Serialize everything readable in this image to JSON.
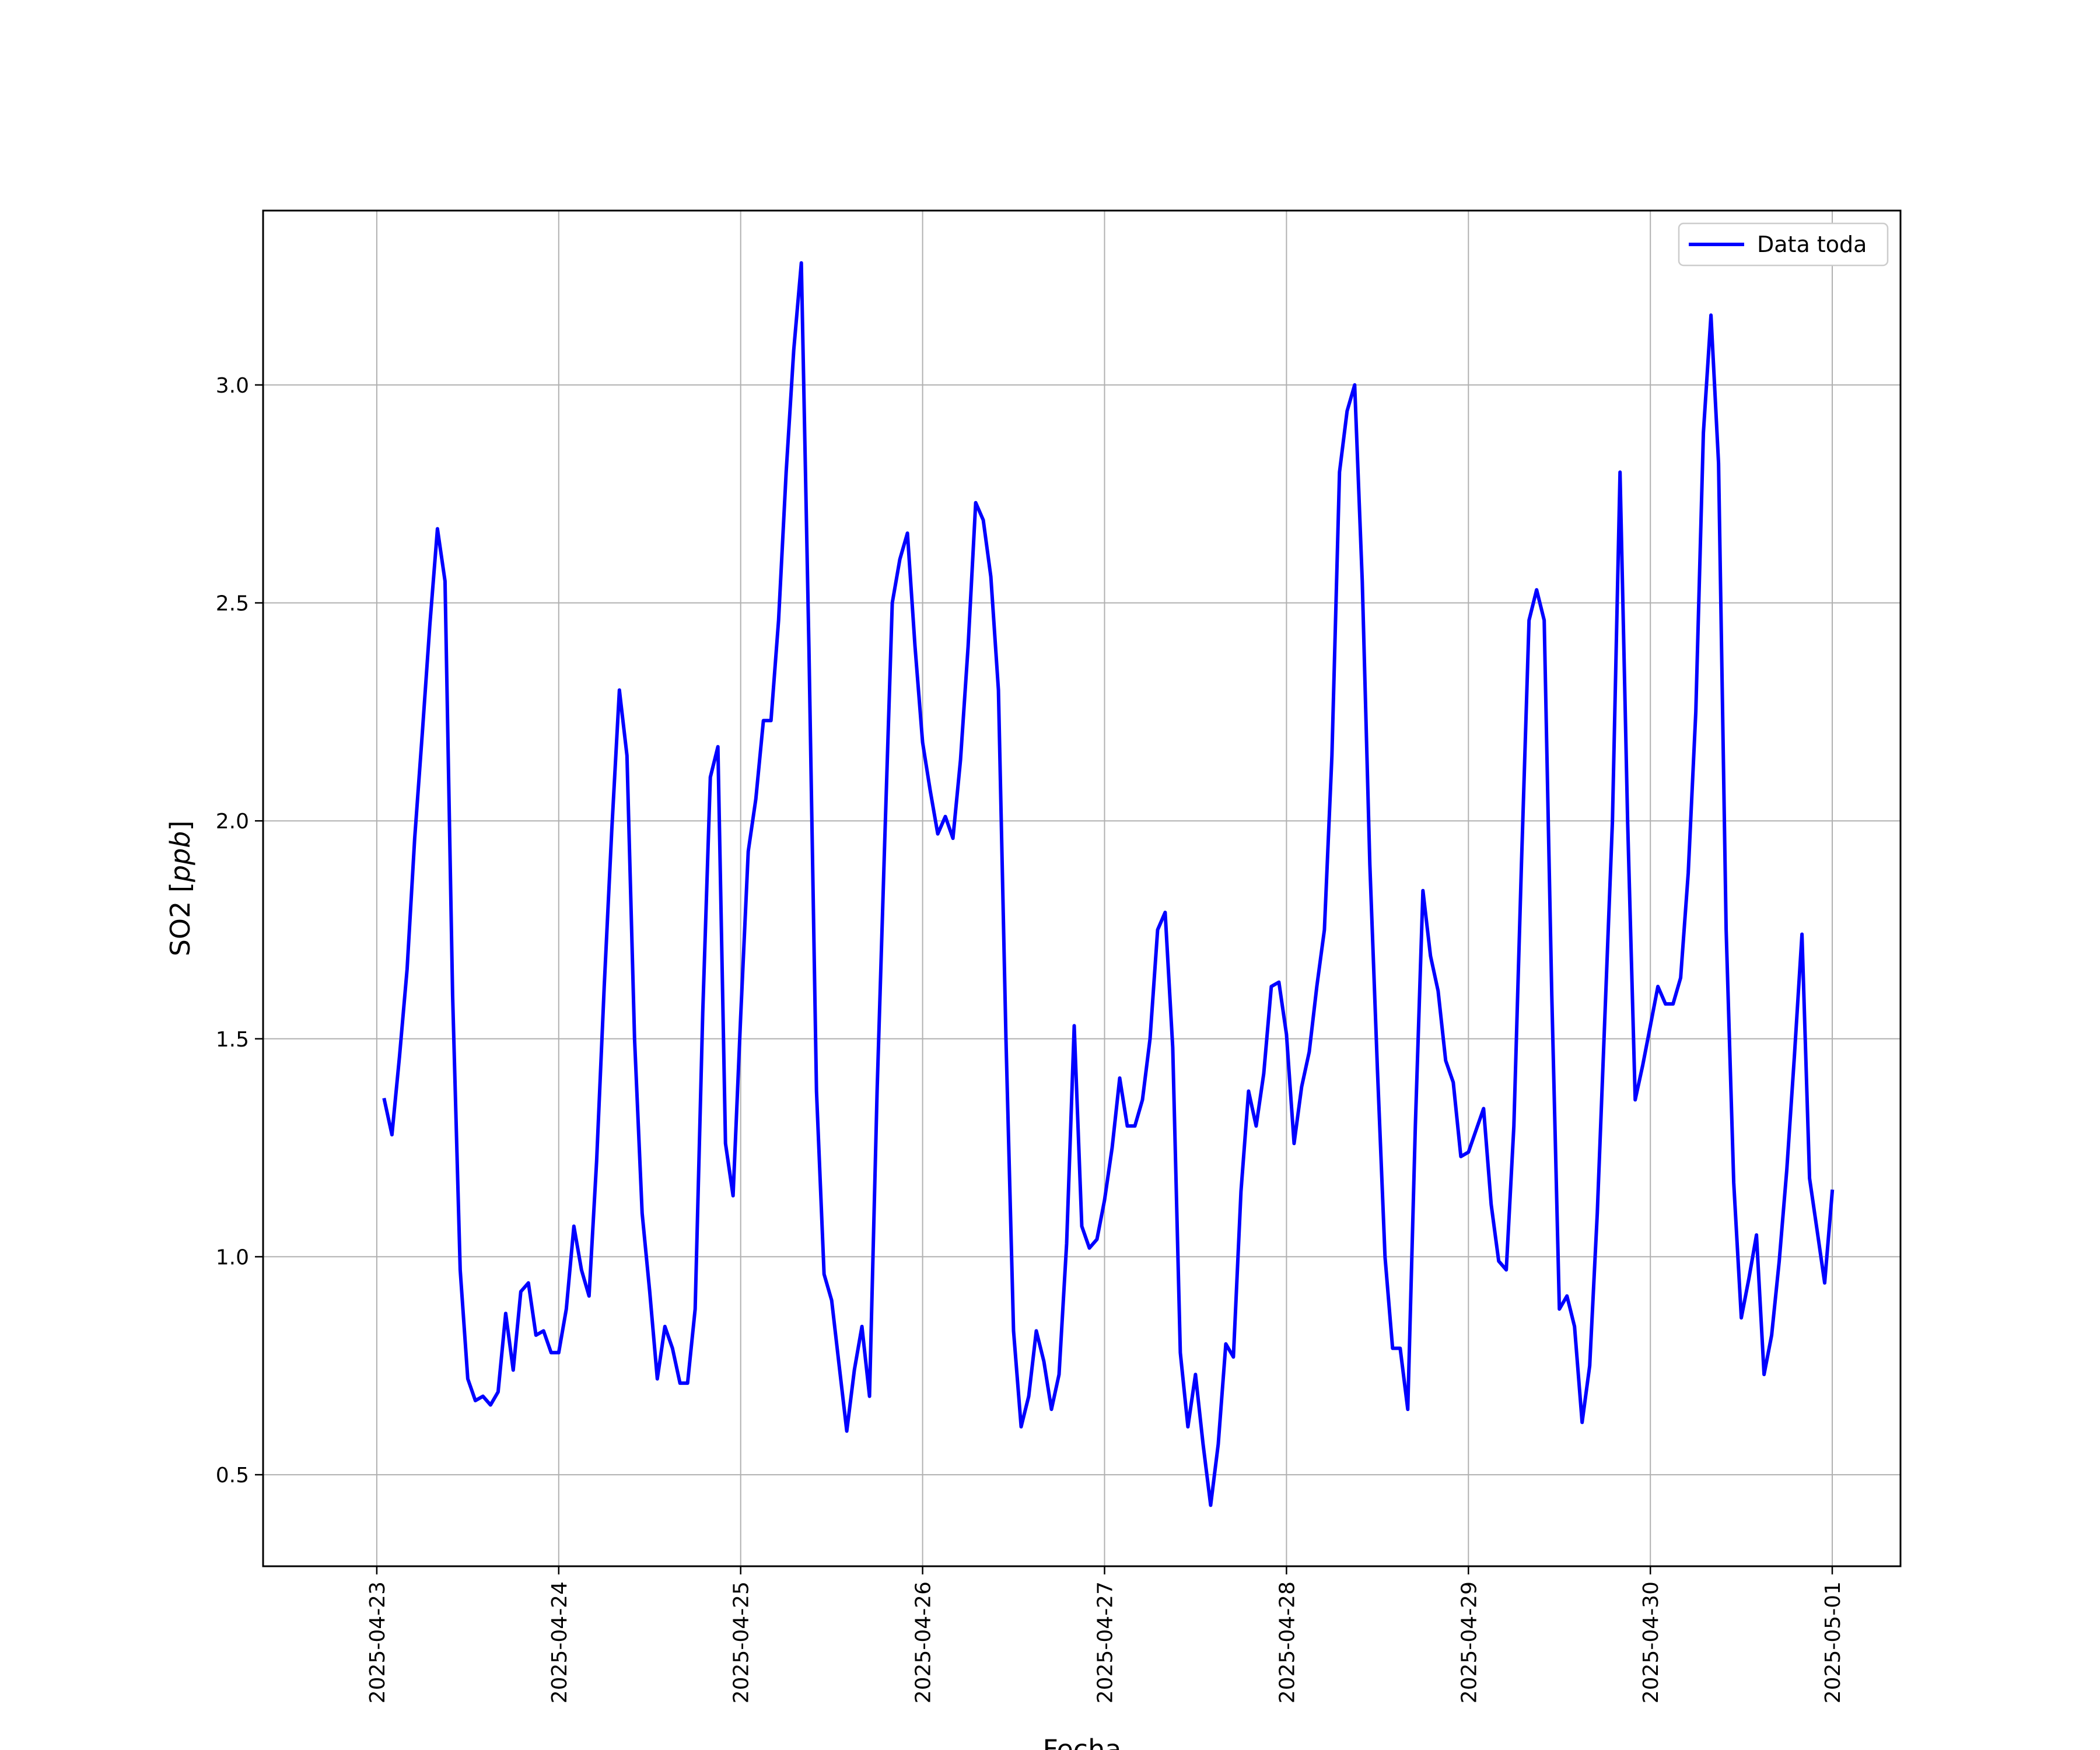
{
  "chart_data": {
    "type": "line",
    "xlabel": "Fecha",
    "ylabel": "SO2 ",
    "ylabel_unit": "ppb",
    "xlim": [
      "2025-04-22T09:00",
      "2025-05-01T09:00"
    ],
    "ylim": [
      0.29,
      3.4
    ],
    "x_ticks": [
      "2025-04-23",
      "2025-04-24",
      "2025-04-25",
      "2025-04-26",
      "2025-04-27",
      "2025-04-28",
      "2025-04-29",
      "2025-04-30",
      "2025-05-01"
    ],
    "y_ticks": [
      0.5,
      1.0,
      1.5,
      2.0,
      2.5,
      3.0
    ],
    "y_tick_labels": [
      "0.5",
      "1.0",
      "1.5",
      "2.0",
      "2.5",
      "3.0"
    ],
    "grid": true,
    "legend_position": "top-right",
    "series": [
      {
        "name": "Data toda",
        "color": "#0000ff",
        "x": [
          "2025-04-23T01:00",
          "2025-04-23T02:00",
          "2025-04-23T03:00",
          "2025-04-23T04:00",
          "2025-04-23T05:00",
          "2025-04-23T06:00",
          "2025-04-23T07:00",
          "2025-04-23T08:00",
          "2025-04-23T09:00",
          "2025-04-23T10:00",
          "2025-04-23T11:00",
          "2025-04-23T12:00",
          "2025-04-23T13:00",
          "2025-04-23T14:00",
          "2025-04-23T15:00",
          "2025-04-23T16:00",
          "2025-04-23T17:00",
          "2025-04-23T18:00",
          "2025-04-23T19:00",
          "2025-04-23T20:00",
          "2025-04-23T21:00",
          "2025-04-23T22:00",
          "2025-04-23T23:00",
          "2025-04-24T00:00",
          "2025-04-24T01:00",
          "2025-04-24T02:00",
          "2025-04-24T03:00",
          "2025-04-24T04:00",
          "2025-04-24T05:00",
          "2025-04-24T06:00",
          "2025-04-24T07:00",
          "2025-04-24T08:00",
          "2025-04-24T09:00",
          "2025-04-24T10:00",
          "2025-04-24T11:00",
          "2025-04-24T12:00",
          "2025-04-24T13:00",
          "2025-04-24T14:00",
          "2025-04-24T15:00",
          "2025-04-24T16:00",
          "2025-04-24T17:00",
          "2025-04-24T18:00",
          "2025-04-24T19:00",
          "2025-04-24T20:00",
          "2025-04-24T21:00",
          "2025-04-24T22:00",
          "2025-04-24T23:00",
          "2025-04-25T00:00",
          "2025-04-25T01:00",
          "2025-04-25T02:00",
          "2025-04-25T03:00",
          "2025-04-25T04:00",
          "2025-04-25T05:00",
          "2025-04-25T06:00",
          "2025-04-25T07:00",
          "2025-04-25T08:00",
          "2025-04-25T09:00",
          "2025-04-25T10:00",
          "2025-04-25T11:00",
          "2025-04-25T12:00",
          "2025-04-25T13:00",
          "2025-04-25T14:00",
          "2025-04-25T15:00",
          "2025-04-25T16:00",
          "2025-04-25T17:00",
          "2025-04-25T18:00",
          "2025-04-25T19:00",
          "2025-04-25T20:00",
          "2025-04-25T21:00",
          "2025-04-25T22:00",
          "2025-04-25T23:00",
          "2025-04-26T00:00",
          "2025-04-26T01:00",
          "2025-04-26T02:00",
          "2025-04-26T03:00",
          "2025-04-26T04:00",
          "2025-04-26T05:00",
          "2025-04-26T06:00",
          "2025-04-26T07:00",
          "2025-04-26T08:00",
          "2025-04-26T09:00",
          "2025-04-26T10:00",
          "2025-04-26T11:00",
          "2025-04-26T12:00",
          "2025-04-26T13:00",
          "2025-04-26T14:00",
          "2025-04-26T15:00",
          "2025-04-26T16:00",
          "2025-04-26T17:00",
          "2025-04-26T18:00",
          "2025-04-26T19:00",
          "2025-04-26T20:00",
          "2025-04-26T21:00",
          "2025-04-26T22:00",
          "2025-04-26T23:00",
          "2025-04-27T00:00",
          "2025-04-27T01:00",
          "2025-04-27T02:00",
          "2025-04-27T03:00",
          "2025-04-27T04:00",
          "2025-04-27T05:00",
          "2025-04-27T06:00",
          "2025-04-27T07:00",
          "2025-04-27T08:00",
          "2025-04-27T09:00",
          "2025-04-27T10:00",
          "2025-04-27T11:00",
          "2025-04-27T12:00",
          "2025-04-27T13:00",
          "2025-04-27T14:00",
          "2025-04-27T15:00",
          "2025-04-27T16:00",
          "2025-04-27T17:00",
          "2025-04-27T18:00",
          "2025-04-27T19:00",
          "2025-04-27T20:00",
          "2025-04-27T21:00",
          "2025-04-27T22:00",
          "2025-04-27T23:00",
          "2025-04-28T00:00",
          "2025-04-28T01:00",
          "2025-04-28T02:00",
          "2025-04-28T03:00",
          "2025-04-28T04:00",
          "2025-04-28T05:00",
          "2025-04-28T06:00",
          "2025-04-28T07:00",
          "2025-04-28T08:00",
          "2025-04-28T09:00",
          "2025-04-28T10:00",
          "2025-04-28T11:00",
          "2025-04-28T12:00",
          "2025-04-28T13:00",
          "2025-04-28T14:00",
          "2025-04-28T15:00",
          "2025-04-28T16:00",
          "2025-04-28T17:00",
          "2025-04-28T18:00",
          "2025-04-28T19:00",
          "2025-04-28T20:00",
          "2025-04-28T21:00",
          "2025-04-28T22:00",
          "2025-04-28T23:00",
          "2025-04-29T00:00",
          "2025-04-29T01:00",
          "2025-04-29T02:00",
          "2025-04-29T03:00",
          "2025-04-29T04:00",
          "2025-04-29T05:00",
          "2025-04-29T06:00",
          "2025-04-29T07:00",
          "2025-04-29T08:00",
          "2025-04-29T09:00",
          "2025-04-29T10:00",
          "2025-04-29T11:00",
          "2025-04-29T12:00",
          "2025-04-29T13:00",
          "2025-04-29T14:00",
          "2025-04-29T15:00",
          "2025-04-29T16:00",
          "2025-04-29T17:00",
          "2025-04-29T18:00",
          "2025-04-29T19:00",
          "2025-04-29T20:00",
          "2025-04-29T21:00",
          "2025-04-29T22:00",
          "2025-04-29T23:00",
          "2025-04-30T00:00",
          "2025-04-30T01:00",
          "2025-04-30T02:00",
          "2025-04-30T03:00",
          "2025-04-30T04:00",
          "2025-04-30T05:00",
          "2025-04-30T06:00",
          "2025-04-30T07:00",
          "2025-04-30T08:00",
          "2025-04-30T09:00",
          "2025-04-30T10:00",
          "2025-04-30T11:00",
          "2025-04-30T12:00",
          "2025-04-30T13:00",
          "2025-04-30T14:00",
          "2025-04-30T15:00",
          "2025-04-30T16:00",
          "2025-04-30T17:00",
          "2025-04-30T18:00",
          "2025-04-30T19:00",
          "2025-04-30T20:00",
          "2025-04-30T21:00",
          "2025-04-30T22:00",
          "2025-04-30T23:00",
          "2025-05-01T00:00"
        ],
        "values": [
          1.36,
          1.28,
          1.46,
          1.66,
          1.96,
          2.2,
          2.45,
          2.67,
          2.55,
          1.6,
          0.97,
          0.72,
          0.67,
          0.68,
          0.66,
          0.69,
          0.87,
          0.74,
          0.92,
          0.94,
          0.82,
          0.83,
          0.78,
          0.78,
          0.88,
          1.07,
          0.97,
          0.91,
          1.22,
          1.62,
          1.98,
          2.3,
          2.15,
          1.5,
          1.1,
          0.92,
          0.72,
          0.84,
          0.79,
          0.71,
          0.71,
          0.88,
          1.56,
          2.1,
          2.17,
          1.26,
          1.14,
          1.55,
          1.93,
          2.05,
          2.23,
          2.23,
          2.46,
          2.8,
          3.08,
          3.28,
          2.4,
          1.38,
          0.96,
          0.9,
          0.75,
          0.6,
          0.74,
          0.84,
          0.68,
          1.38,
          1.95,
          2.5,
          2.6,
          2.66,
          2.4,
          2.18,
          2.07,
          1.97,
          2.01,
          1.96,
          2.14,
          2.4,
          2.73,
          2.69,
          2.56,
          2.3,
          1.5,
          0.83,
          0.61,
          0.68,
          0.83,
          0.76,
          0.65,
          0.73,
          1.03,
          1.53,
          1.07,
          1.02,
          1.04,
          1.13,
          1.25,
          1.41,
          1.3,
          1.3,
          1.36,
          1.5,
          1.75,
          1.79,
          1.48,
          0.78,
          0.61,
          0.73,
          0.57,
          0.43,
          0.57,
          0.8,
          0.77,
          1.15,
          1.38,
          1.3,
          1.42,
          1.62,
          1.63,
          1.51,
          1.26,
          1.39,
          1.47,
          1.62,
          1.75,
          2.15,
          2.8,
          2.94,
          3.0,
          2.55,
          1.9,
          1.43,
          1.0,
          0.79,
          0.79,
          0.65,
          1.3,
          1.84,
          1.69,
          1.61,
          1.45,
          1.4,
          1.23,
          1.24,
          1.29,
          1.34,
          1.12,
          0.99,
          0.97,
          1.3,
          1.9,
          2.46,
          2.53,
          2.46,
          1.6,
          0.88,
          0.91,
          0.84,
          0.62,
          0.75,
          1.1,
          1.55,
          2.0,
          2.8,
          2.0,
          1.36,
          1.44,
          1.53,
          1.62,
          1.58,
          1.58,
          1.64,
          1.88,
          2.25,
          2.89,
          3.16,
          2.82,
          1.75,
          1.17,
          0.86,
          0.95,
          1.05,
          0.73,
          0.82,
          0.99,
          1.2,
          1.46,
          1.74,
          1.18,
          1.06,
          0.94,
          1.15
        ]
      }
    ]
  }
}
